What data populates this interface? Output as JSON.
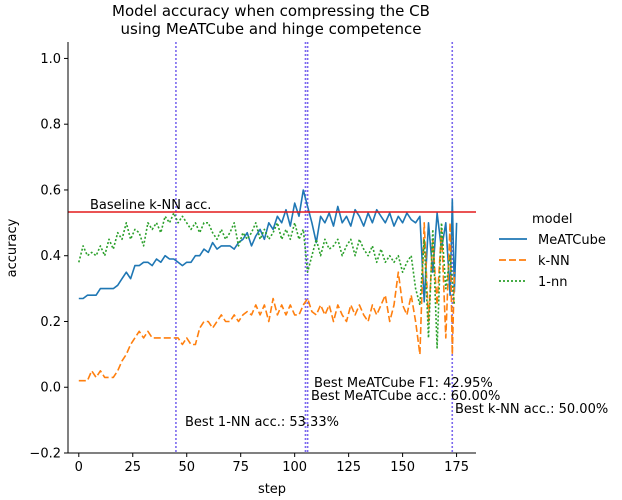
{
  "chart_data": {
    "type": "line",
    "title_lines": [
      "Model accuracy when compressing the CB",
      "using MeATCube and hinge competence"
    ],
    "xlabel": "step",
    "ylabel": "accuracy",
    "xlim": [
      -5,
      184
    ],
    "ylim": [
      -0.2,
      1.05
    ],
    "xticks": [
      0,
      25,
      50,
      75,
      100,
      125,
      150,
      175
    ],
    "yticks": [
      -0.2,
      0.0,
      0.2,
      0.4,
      0.6,
      0.8,
      1.0
    ],
    "xtick_labels": [
      "0",
      "25",
      "50",
      "75",
      "100",
      "125",
      "150",
      "175"
    ],
    "ytick_labels": [
      "−0.2",
      "0.0",
      "0.2",
      "0.4",
      "0.6",
      "0.8",
      "1.0"
    ],
    "grid": false,
    "legend": {
      "title": "model",
      "placement": "right",
      "entries": [
        {
          "label": "MeATCube",
          "color": "#1f77b4",
          "style": "solid"
        },
        {
          "label": "k-NN",
          "color": "#ff7f0e",
          "style": "dashed"
        },
        {
          "label": "1-nn",
          "color": "#2ca02c",
          "style": "dotted"
        }
      ]
    },
    "series": [
      {
        "name": "MeATCube",
        "color": "#1f77b4",
        "style": "solid",
        "x": [
          0,
          2,
          4,
          6,
          8,
          10,
          12,
          14,
          16,
          18,
          20,
          22,
          24,
          26,
          28,
          30,
          32,
          34,
          36,
          38,
          40,
          42,
          44,
          46,
          48,
          50,
          52,
          54,
          56,
          58,
          60,
          62,
          64,
          66,
          68,
          70,
          72,
          74,
          76,
          78,
          80,
          82,
          84,
          86,
          88,
          90,
          92,
          94,
          96,
          98,
          100,
          102,
          104,
          106,
          108,
          110,
          112,
          114,
          116,
          118,
          120,
          122,
          124,
          126,
          128,
          130,
          132,
          134,
          136,
          138,
          140,
          142,
          144,
          146,
          148,
          150,
          152,
          154,
          156,
          158,
          160,
          162,
          164,
          166,
          168,
          170,
          172,
          173,
          174,
          175
        ],
        "y": [
          0.27,
          0.27,
          0.28,
          0.28,
          0.28,
          0.3,
          0.3,
          0.3,
          0.3,
          0.31,
          0.33,
          0.35,
          0.33,
          0.37,
          0.37,
          0.38,
          0.38,
          0.37,
          0.39,
          0.38,
          0.4,
          0.39,
          0.39,
          0.38,
          0.37,
          0.38,
          0.38,
          0.4,
          0.4,
          0.42,
          0.41,
          0.44,
          0.42,
          0.43,
          0.43,
          0.43,
          0.42,
          0.44,
          0.45,
          0.47,
          0.43,
          0.46,
          0.48,
          0.45,
          0.5,
          0.48,
          0.52,
          0.5,
          0.54,
          0.49,
          0.56,
          0.52,
          0.6,
          0.55,
          0.5,
          0.44,
          0.52,
          0.5,
          0.53,
          0.49,
          0.55,
          0.5,
          0.52,
          0.49,
          0.54,
          0.52,
          0.49,
          0.53,
          0.5,
          0.54,
          0.52,
          0.5,
          0.53,
          0.49,
          0.52,
          0.5,
          0.53,
          0.51,
          0.5,
          0.52,
          0.26,
          0.5,
          0.35,
          0.53,
          0.42,
          0.5,
          0.28,
          0.57,
          0.29,
          0.5
        ]
      },
      {
        "name": "k-NN",
        "color": "#ff7f0e",
        "style": "dashed",
        "x": [
          0,
          4,
          6,
          8,
          10,
          12,
          14,
          16,
          18,
          20,
          22,
          24,
          26,
          28,
          30,
          32,
          34,
          36,
          38,
          40,
          42,
          44,
          46,
          48,
          50,
          52,
          54,
          56,
          58,
          60,
          62,
          64,
          66,
          68,
          70,
          72,
          74,
          76,
          78,
          80,
          82,
          84,
          86,
          88,
          90,
          92,
          94,
          96,
          98,
          100,
          102,
          104,
          106,
          108,
          110,
          112,
          114,
          116,
          118,
          120,
          122,
          124,
          126,
          128,
          130,
          132,
          134,
          136,
          138,
          140,
          142,
          144,
          146,
          148,
          150,
          152,
          154,
          156,
          158,
          160,
          162,
          164,
          166,
          168,
          170,
          172,
          173,
          174
        ],
        "y": [
          0.02,
          0.02,
          0.05,
          0.03,
          0.05,
          0.03,
          0.03,
          0.03,
          0.05,
          0.08,
          0.1,
          0.13,
          0.15,
          0.17,
          0.15,
          0.17,
          0.15,
          0.15,
          0.15,
          0.15,
          0.15,
          0.15,
          0.15,
          0.13,
          0.15,
          0.13,
          0.13,
          0.18,
          0.2,
          0.2,
          0.18,
          0.2,
          0.22,
          0.2,
          0.2,
          0.22,
          0.2,
          0.22,
          0.23,
          0.22,
          0.25,
          0.22,
          0.25,
          0.2,
          0.27,
          0.22,
          0.25,
          0.22,
          0.25,
          0.22,
          0.22,
          0.25,
          0.27,
          0.23,
          0.22,
          0.25,
          0.22,
          0.25,
          0.2,
          0.25,
          0.22,
          0.2,
          0.25,
          0.22,
          0.25,
          0.22,
          0.2,
          0.25,
          0.22,
          0.25,
          0.28,
          0.2,
          0.25,
          0.35,
          0.25,
          0.22,
          0.28,
          0.2,
          0.1,
          0.5,
          0.2,
          0.45,
          0.25,
          0.48,
          0.15,
          0.5,
          0.1,
          0.35
        ]
      },
      {
        "name": "1-nn",
        "color": "#2ca02c",
        "style": "dotted",
        "x": [
          0,
          2,
          4,
          6,
          8,
          10,
          12,
          14,
          16,
          18,
          20,
          22,
          24,
          26,
          28,
          30,
          32,
          34,
          36,
          38,
          40,
          42,
          44,
          46,
          48,
          50,
          52,
          54,
          56,
          58,
          60,
          62,
          64,
          66,
          68,
          70,
          72,
          74,
          76,
          78,
          80,
          82,
          84,
          86,
          88,
          90,
          92,
          94,
          96,
          98,
          100,
          102,
          104,
          106,
          108,
          110,
          112,
          114,
          116,
          118,
          120,
          122,
          124,
          126,
          128,
          130,
          132,
          134,
          136,
          138,
          140,
          142,
          144,
          146,
          148,
          150,
          152,
          154,
          156,
          158,
          160,
          162,
          164,
          166,
          168,
          170,
          172,
          174
        ],
        "y": [
          0.38,
          0.43,
          0.4,
          0.41,
          0.4,
          0.43,
          0.4,
          0.45,
          0.42,
          0.47,
          0.45,
          0.5,
          0.45,
          0.48,
          0.47,
          0.43,
          0.5,
          0.48,
          0.5,
          0.47,
          0.52,
          0.5,
          0.53,
          0.5,
          0.52,
          0.5,
          0.48,
          0.5,
          0.47,
          0.5,
          0.5,
          0.47,
          0.45,
          0.48,
          0.45,
          0.47,
          0.5,
          0.43,
          0.47,
          0.45,
          0.47,
          0.5,
          0.45,
          0.48,
          0.45,
          0.47,
          0.5,
          0.45,
          0.48,
          0.45,
          0.5,
          0.45,
          0.48,
          0.35,
          0.4,
          0.45,
          0.4,
          0.45,
          0.42,
          0.43,
          0.45,
          0.4,
          0.43,
          0.45,
          0.4,
          0.45,
          0.42,
          0.4,
          0.43,
          0.38,
          0.42,
          0.38,
          0.4,
          0.38,
          0.4,
          0.35,
          0.38,
          0.4,
          0.3,
          0.25,
          0.45,
          0.15,
          0.48,
          0.12,
          0.5,
          0.3,
          0.4,
          0.25
        ]
      }
    ],
    "hlines": [
      {
        "y": 0.533,
        "color": "#e31a1c",
        "label": "Baseline k-NN acc."
      }
    ],
    "vlines": [
      {
        "x": 45,
        "color": "#7b68ee",
        "label": "Best 1-NN acc.: 53.33%"
      },
      {
        "x": 105,
        "color": "#7b68ee",
        "label": "Best MeATCube F1: 42.95%"
      },
      {
        "x": 106,
        "color": "#7b68ee",
        "label": "Best MeATCube acc.: 60.00%"
      },
      {
        "x": 173,
        "color": "#7b68ee",
        "label": "Best k-NN acc.: 50.00%"
      }
    ]
  }
}
